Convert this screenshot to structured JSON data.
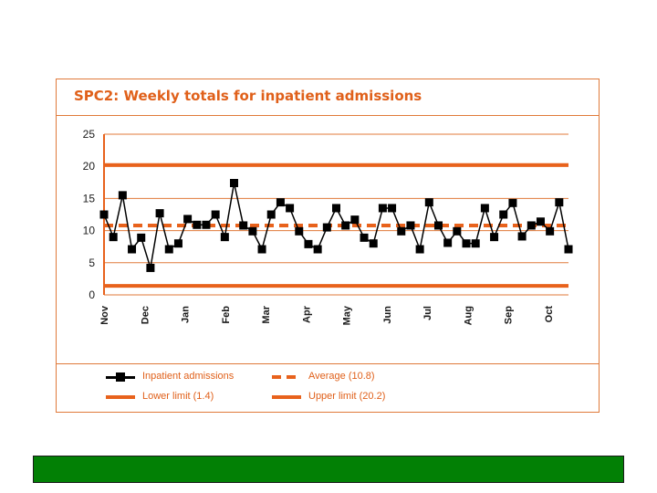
{
  "chart_data": {
    "type": "line",
    "title": "SPC2: Weekly totals for inpatient admissions",
    "xlabel": "",
    "ylabel": "",
    "ylim": [
      0,
      25
    ],
    "yticks": [
      0,
      5,
      10,
      15,
      20,
      25
    ],
    "month_ticks": [
      "Nov",
      "Dec",
      "Jan",
      "Feb",
      "Mar",
      "Apr",
      "May",
      "Jun",
      "Jul",
      "Aug",
      "Sep",
      "Oct"
    ],
    "series": [
      {
        "name": "Inpatient admissions",
        "values": [
          12.5,
          9,
          15.5,
          7.1,
          8.9,
          4.2,
          12.7,
          7.1,
          8,
          11.8,
          10.9,
          10.9,
          12.5,
          9,
          17.4,
          10.8,
          9.9,
          7.1,
          12.5,
          14.4,
          13.5,
          9.9,
          7.9,
          7.1,
          10.5,
          13.5,
          10.8,
          11.7,
          8.9,
          8,
          13.5,
          13.5,
          9.9,
          10.8,
          7.1,
          14.4,
          10.8,
          8.1,
          9.9,
          8,
          8,
          13.5,
          9,
          12.5,
          14.3,
          9.1,
          10.8,
          11.4,
          9.9,
          14.4,
          7.1
        ]
      }
    ],
    "average": 10.8,
    "lower_limit": 1.4,
    "upper_limit": 20.2,
    "legend": {
      "admissions": "Inpatient admissions",
      "average": "Average (10.8)",
      "lower": "Lower limit (1.4)",
      "upper": "Upper limit (20.2)"
    },
    "colors": {
      "limit": "#e8621c",
      "axis": "#e07a3a",
      "series": "#000000",
      "text": "#1a1a1a",
      "footer": "#028005"
    }
  }
}
